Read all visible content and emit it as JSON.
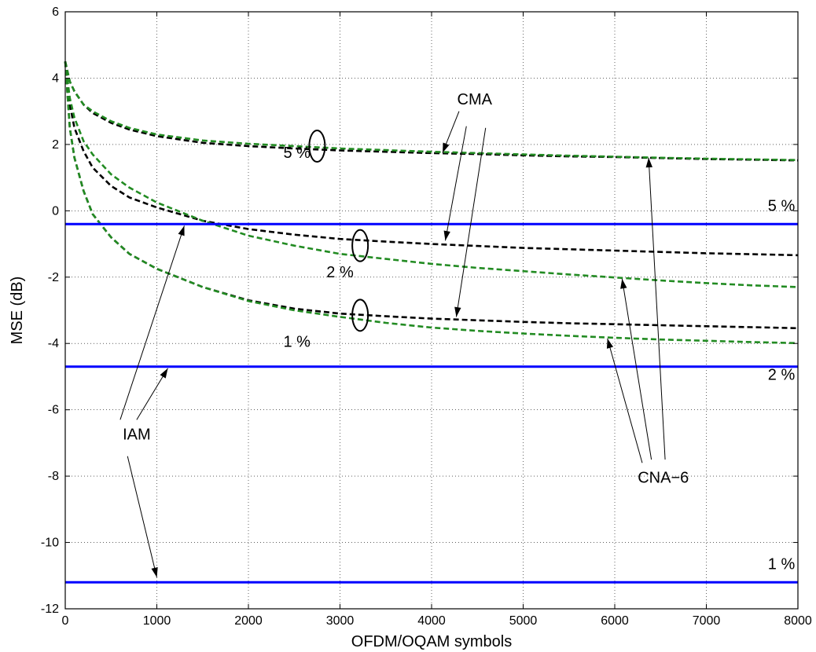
{
  "chart_data": {
    "type": "line",
    "title": "",
    "xlabel": "OFDM/OQAM symbols",
    "ylabel": "MSE (dB)",
    "xlim": [
      0,
      8000
    ],
    "ylim": [
      -12,
      6
    ],
    "xticks": [
      0,
      1000,
      2000,
      3000,
      4000,
      5000,
      6000,
      7000,
      8000
    ],
    "yticks": [
      -12,
      -10,
      -8,
      -6,
      -4,
      -2,
      0,
      2,
      4,
      6
    ],
    "grid": true,
    "colors": {
      "cma": "#000000",
      "cna": "#228B22",
      "iam": "#0000ff"
    },
    "series": [
      {
        "x": [
          0,
          50,
          100,
          200,
          300,
          500,
          700,
          1000,
          1500,
          2000,
          2500,
          3000,
          3500,
          4000,
          4500,
          5000,
          5500,
          6000,
          6500,
          7000,
          7500,
          8000
        ],
        "y": [
          4.5,
          3.9,
          3.6,
          3.2,
          2.95,
          2.65,
          2.45,
          2.25,
          2.05,
          1.95,
          1.88,
          1.82,
          1.78,
          1.74,
          1.71,
          1.67,
          1.64,
          1.62,
          1.59,
          1.56,
          1.54,
          1.52
        ]
      },
      {
        "x": [
          0,
          50,
          100,
          200,
          300,
          500,
          700,
          1000,
          1500,
          2000,
          2500,
          3000,
          3500,
          4000,
          4500,
          5000,
          5500,
          6000,
          6500,
          7000,
          7500,
          8000
        ],
        "y": [
          4.5,
          3.9,
          3.6,
          3.2,
          3.0,
          2.7,
          2.5,
          2.3,
          2.12,
          2.02,
          1.95,
          1.88,
          1.83,
          1.78,
          1.74,
          1.7,
          1.66,
          1.63,
          1.6,
          1.57,
          1.55,
          1.53
        ]
      },
      {
        "x": [
          0,
          50,
          100,
          200,
          300,
          500,
          700,
          1000,
          1500,
          2000,
          2500,
          3000,
          3500,
          4000,
          4500,
          5000,
          5500,
          6000,
          6500,
          7000,
          7500,
          8000
        ],
        "y": [
          4.5,
          3.2,
          2.5,
          1.8,
          1.3,
          0.75,
          0.4,
          0.1,
          -0.3,
          -0.55,
          -0.72,
          -0.85,
          -0.93,
          -1.0,
          -1.06,
          -1.12,
          -1.16,
          -1.2,
          -1.24,
          -1.28,
          -1.31,
          -1.34
        ]
      },
      {
        "x": [
          0,
          50,
          100,
          200,
          300,
          500,
          700,
          1000,
          1500,
          2000,
          2500,
          3000,
          3500,
          4000,
          4500,
          5000,
          5500,
          6000,
          6500,
          7000,
          7500,
          8000
        ],
        "y": [
          4.5,
          3.4,
          2.8,
          2.1,
          1.7,
          1.1,
          0.7,
          0.25,
          -0.3,
          -0.75,
          -1.05,
          -1.3,
          -1.45,
          -1.6,
          -1.72,
          -1.82,
          -1.92,
          -2.01,
          -2.1,
          -2.18,
          -2.25,
          -2.3
        ]
      },
      {
        "x": [
          0,
          50,
          100,
          200,
          300,
          500,
          700,
          1000,
          1500,
          2000,
          2500,
          3000,
          3500,
          4000,
          4500,
          5000,
          5500,
          6000,
          6500,
          7000,
          7500,
          8000
        ],
        "y": [
          4.5,
          2.5,
          1.6,
          0.6,
          -0.1,
          -0.8,
          -1.3,
          -1.75,
          -2.3,
          -2.7,
          -2.95,
          -3.1,
          -3.18,
          -3.25,
          -3.3,
          -3.35,
          -3.39,
          -3.42,
          -3.45,
          -3.48,
          -3.51,
          -3.54
        ]
      },
      {
        "x": [
          0,
          50,
          100,
          200,
          300,
          500,
          700,
          1000,
          1500,
          2000,
          2500,
          3000,
          3500,
          4000,
          4500,
          5000,
          5500,
          6000,
          6500,
          7000,
          7500,
          8000
        ],
        "y": [
          4.5,
          2.5,
          1.6,
          0.6,
          -0.1,
          -0.8,
          -1.3,
          -1.75,
          -2.3,
          -2.72,
          -3.0,
          -3.2,
          -3.38,
          -3.52,
          -3.62,
          -3.7,
          -3.77,
          -3.83,
          -3.88,
          -3.92,
          -3.96,
          -3.99
        ]
      },
      {
        "x": [
          0,
          8000
        ],
        "y": [
          -0.4,
          -0.4
        ]
      },
      {
        "x": [
          0,
          8000
        ],
        "y": [
          -4.7,
          -4.7
        ]
      },
      {
        "x": [
          0,
          8000
        ],
        "y": [
          -11.2,
          -11.2
        ]
      }
    ],
    "annotations": [
      {
        "text": "5 %",
        "x": 2530,
        "y": 1.6
      },
      {
        "text": "2 %",
        "x": 3000,
        "y": -2.0
      },
      {
        "text": "1 %",
        "x": 2530,
        "y": -4.1
      },
      {
        "text": "CMA",
        "x": 4470,
        "y": 3.2
      },
      {
        "text": "CNA−6",
        "x": 6530,
        "y": -8.2
      },
      {
        "text": "IAM",
        "x": 780,
        "y": -6.9
      },
      {
        "text": "5 %",
        "x": 7820,
        "y": 0.0
      },
      {
        "text": "2 %",
        "x": 7820,
        "y": -5.1
      },
      {
        "text": "1 %",
        "x": 7820,
        "y": -10.8
      }
    ]
  }
}
